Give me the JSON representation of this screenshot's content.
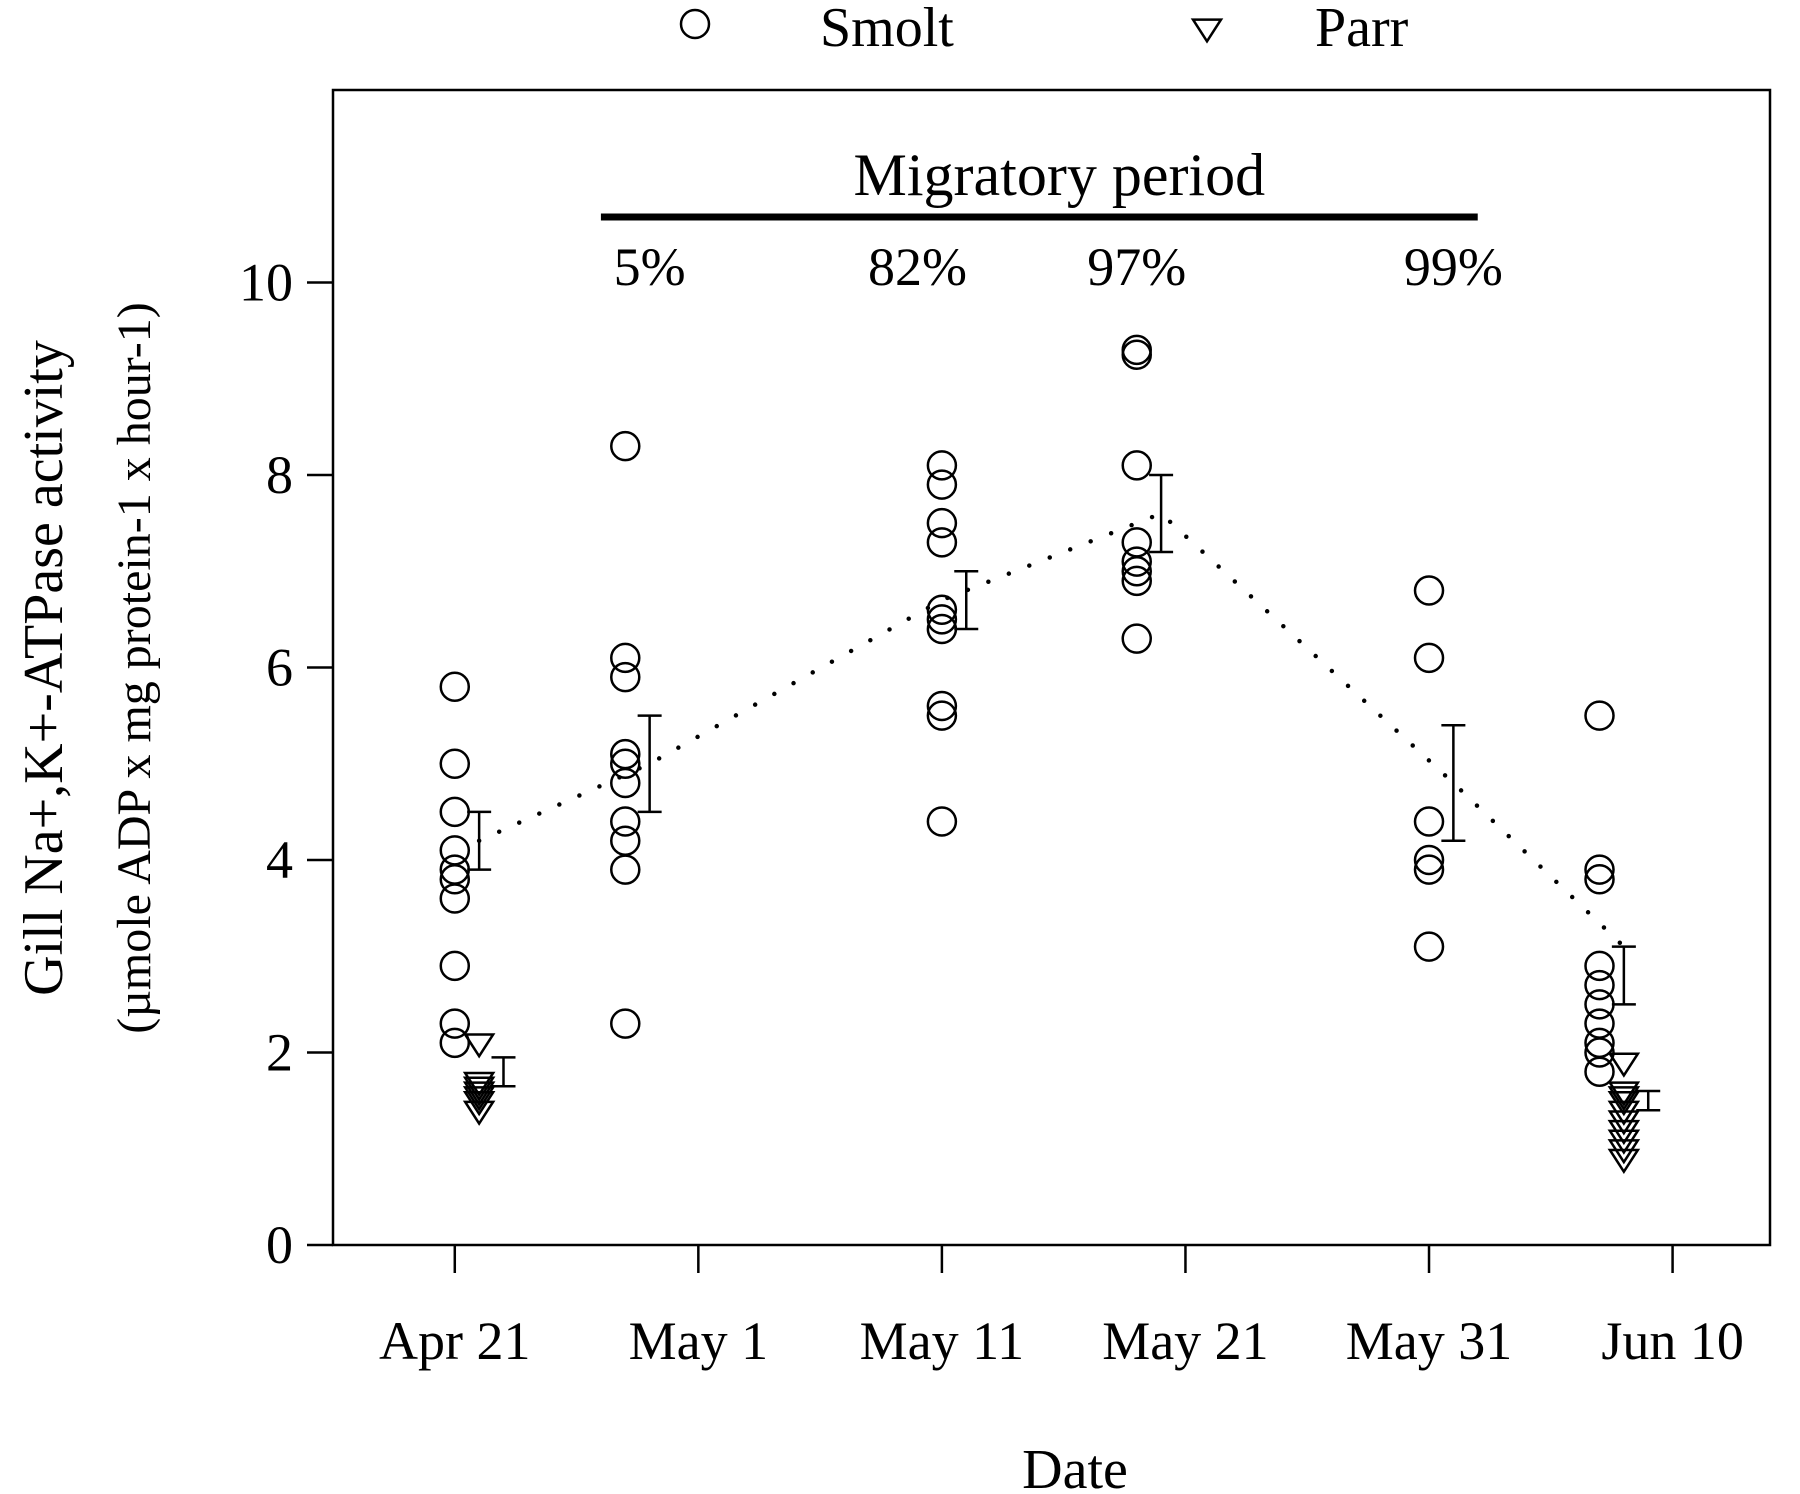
{
  "chart_data": {
    "type": "scatter",
    "xlabel": "Date",
    "ylabel_main": "Gill Na+,K+-ATPase activity",
    "ylabel_unit": "(µmole ADP x mg protein-1 x hour-1)",
    "ylim": [
      0,
      12
    ],
    "yticks": [
      0,
      2,
      4,
      6,
      8,
      10
    ],
    "xlim": [
      "Apr 16",
      "Jun 14"
    ],
    "xticks": [
      {
        "date": "Apr 21",
        "label": "Apr 21"
      },
      {
        "date": "May 1",
        "label": "May 1"
      },
      {
        "date": "May 11",
        "label": "May 11"
      },
      {
        "date": "May 21",
        "label": "May 21"
      },
      {
        "date": "May 31",
        "label": "May 31"
      },
      {
        "date": "Jun 10",
        "label": "Jun 10"
      }
    ],
    "legend": {
      "position": "top",
      "entries": [
        {
          "name": "Smolt",
          "marker": "circle"
        },
        {
          "name": "Parr",
          "marker": "triangle-down"
        }
      ]
    },
    "migratory_period": {
      "label": "Migratory period",
      "start": "Apr 27",
      "end": "Jun 2",
      "percentages": [
        {
          "date": "Apr 29",
          "label": "5%"
        },
        {
          "date": "May 10",
          "label": "82%"
        },
        {
          "date": "May 19",
          "label": "97%"
        },
        {
          "date": "Jun 1",
          "label": "99%"
        }
      ]
    },
    "series": [
      {
        "name": "Smolt",
        "marker": "circle",
        "groups": [
          {
            "date": "Apr 21",
            "values": [
              5.8,
              5.0,
              4.5,
              4.1,
              3.9,
              3.8,
              3.6,
              2.9,
              2.3,
              2.1
            ]
          },
          {
            "date": "Apr 28",
            "values": [
              8.3,
              6.1,
              5.9,
              5.1,
              5.0,
              4.8,
              4.4,
              4.2,
              3.9,
              2.3
            ]
          },
          {
            "date": "May 11",
            "values": [
              8.1,
              7.9,
              7.5,
              7.3,
              6.6,
              6.5,
              6.4,
              5.6,
              5.5,
              4.4
            ]
          },
          {
            "date": "May 19",
            "values": [
              9.3,
              9.25,
              8.1,
              7.3,
              7.1,
              7.0,
              6.9,
              6.3
            ]
          },
          {
            "date": "May 31",
            "values": [
              6.8,
              6.1,
              4.4,
              4.0,
              3.9,
              3.1
            ]
          },
          {
            "date": "Jun 7",
            "values": [
              5.5,
              3.9,
              3.8,
              2.9,
              2.7,
              2.5,
              2.3,
              2.1,
              2.0,
              1.8
            ]
          }
        ]
      },
      {
        "name": "Parr",
        "marker": "triangle-down",
        "groups": [
          {
            "date": "Apr 22",
            "values": [
              2.1,
              1.7,
              1.65,
              1.6,
              1.55,
              1.5,
              1.4
            ]
          },
          {
            "date": "Jun 8",
            "values": [
              1.9,
              1.6,
              1.55,
              1.5,
              1.4,
              1.3,
              1.2,
              1.1,
              1.0,
              0.9
            ]
          }
        ]
      }
    ],
    "mean_trend": {
      "style": "dotted",
      "points": [
        {
          "date": "Apr 22",
          "value": 4.2
        },
        {
          "date": "Apr 29",
          "value": 5.0
        },
        {
          "date": "May 11",
          "value": 6.7
        },
        {
          "date": "May 20",
          "value": 7.6
        },
        {
          "date": "Jun 1",
          "value": 4.8
        },
        {
          "date": "Jun 8",
          "value": 3.1
        }
      ]
    },
    "error_bars": [
      {
        "group": "Smolt",
        "date": "Apr 22",
        "low": 3.9,
        "high": 4.5
      },
      {
        "group": "Smolt",
        "date": "Apr 29",
        "low": 4.5,
        "high": 5.5
      },
      {
        "group": "Smolt",
        "date": "May 12",
        "low": 6.4,
        "high": 7.0
      },
      {
        "group": "Smolt",
        "date": "May 20",
        "low": 7.2,
        "high": 8.0
      },
      {
        "group": "Smolt",
        "date": "Jun 1",
        "low": 4.2,
        "high": 5.4
      },
      {
        "group": "Smolt",
        "date": "Jun 8",
        "low": 2.5,
        "high": 3.1
      },
      {
        "group": "Parr",
        "date": "Apr 23",
        "low": 1.65,
        "high": 1.95
      },
      {
        "group": "Parr",
        "date": "Jun 9",
        "low": 1.4,
        "high": 1.6
      }
    ]
  }
}
